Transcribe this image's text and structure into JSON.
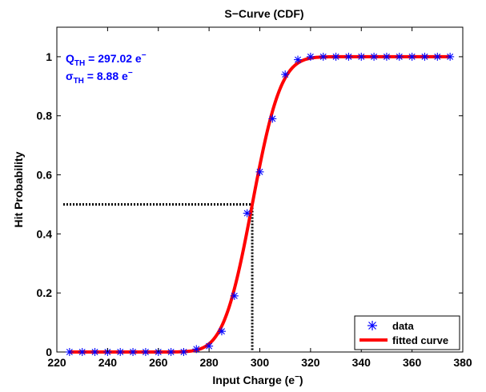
{
  "chart_data": {
    "type": "scatter",
    "title": "S−Curve (CDF)",
    "xlabel": "Input Charge (e",
    "xlabel_sup": "−",
    "xlabel_close": ")",
    "ylabel": "Hit Probability",
    "xlim": [
      220,
      380
    ],
    "ylim": [
      0,
      1.1
    ],
    "xticks": [
      220,
      240,
      260,
      280,
      300,
      320,
      340,
      360,
      380
    ],
    "yticks": [
      0,
      0.2,
      0.4,
      0.6,
      0.8,
      1
    ],
    "ytick_labels": [
      "0",
      "0.2",
      "0.4",
      "0.6",
      "0.8",
      "1"
    ],
    "grid": false,
    "legend_position": "bottom-right",
    "series": [
      {
        "name": "data",
        "marker": "asterisk",
        "color": "#0000ff",
        "x": [
          225,
          230,
          235,
          240,
          245,
          250,
          255,
          260,
          265,
          270,
          275,
          280,
          285,
          290,
          295,
          300,
          305,
          310,
          315,
          320,
          325,
          330,
          335,
          340,
          345,
          350,
          355,
          360,
          365,
          370,
          375
        ],
        "y": [
          0,
          0,
          0,
          0,
          0,
          0,
          0,
          0,
          0,
          0,
          0.01,
          0.02,
          0.07,
          0.19,
          0.47,
          0.61,
          0.79,
          0.94,
          0.99,
          1,
          1,
          1,
          1,
          1,
          1,
          1,
          1,
          1,
          1,
          1,
          1
        ]
      },
      {
        "name": "fitted curve",
        "style": "line",
        "color": "#ff0000",
        "model": "normal_cdf",
        "mu": 297.02,
        "sigma": 8.88,
        "x_range": [
          225,
          375
        ]
      }
    ],
    "annotations": {
      "q_th_sym": "Q",
      "q_th_sub": "TH",
      "q_th_value": " = 297.02 e",
      "q_th_sup": "−",
      "sigma_th_sym": "σ",
      "sigma_th_sub": "TH",
      "sigma_th_value": " = 8.88 e",
      "sigma_th_sup": "−",
      "threshold_x": 297.02,
      "threshold_y": 0.5
    }
  }
}
